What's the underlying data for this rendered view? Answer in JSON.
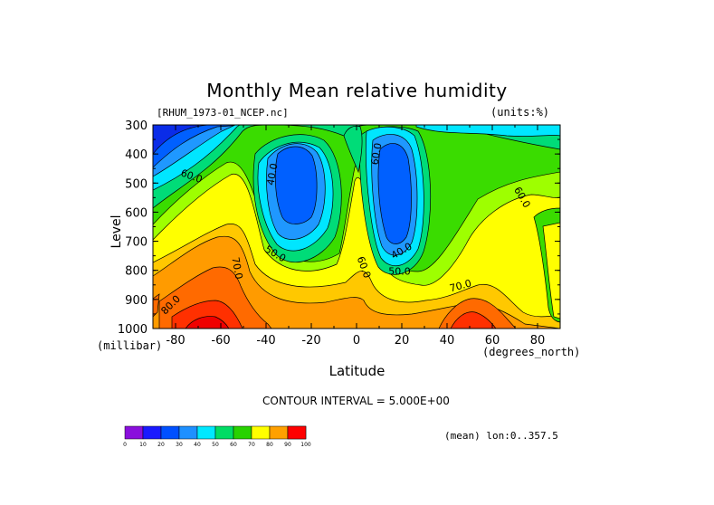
{
  "chart_data": {
    "type": "contour",
    "title": "Monthly Mean relative humidity",
    "dataset_label": "[RHUM_1973-01_NCEP.nc]",
    "units_label": "(units:%)",
    "xlabel": "Latitude",
    "x_unit": "(degrees_north)",
    "ylabel": "Level",
    "y_unit": "(millibar)",
    "xlim": [
      -90,
      90
    ],
    "ylim": [
      1000,
      300
    ],
    "x_ticks": [
      -80,
      -60,
      -40,
      -20,
      0,
      20,
      40,
      60,
      80
    ],
    "x_tick_labels": [
      "-80",
      "-60",
      "-40",
      "-20",
      "0",
      "20",
      "40",
      "60",
      "80"
    ],
    "y_ticks": [
      300,
      400,
      500,
      600,
      700,
      800,
      900,
      1000
    ],
    "y_tick_labels": [
      "300",
      "400",
      "500",
      "600",
      "700",
      "800",
      "900",
      "1000"
    ],
    "contour_interval_text": "CONTOUR INTERVAL = 5.000E+00",
    "footer_text": "(mean) lon:0..357.5",
    "colorbar": {
      "levels": [
        0,
        10,
        20,
        30,
        40,
        50,
        60,
        70,
        80,
        90,
        100
      ],
      "labels": [
        "0",
        "10",
        "20",
        "30",
        "40",
        "50",
        "60",
        "70",
        "80",
        "90",
        "100"
      ],
      "colors": [
        "#8a0fdc",
        "#1a1aff",
        "#0050ff",
        "#1e90ff",
        "#00e8ff",
        "#00dc64",
        "#28d200",
        "#ffff00",
        "#ffa000",
        "#ff5000",
        "#ff0000"
      ]
    },
    "contour_labels": [
      {
        "text": "60.0",
        "lat": -73,
        "lev": 478,
        "rot": 20
      },
      {
        "text": "40.0",
        "lat": -37,
        "lev": 470,
        "rot": -80
      },
      {
        "text": "50.0",
        "lat": -36,
        "lev": 745,
        "rot": 30
      },
      {
        "text": "70.0",
        "lat": -53,
        "lev": 793,
        "rot": 80
      },
      {
        "text": "80.0",
        "lat": -82,
        "lev": 920,
        "rot": -45
      },
      {
        "text": "60.0",
        "lat": 3,
        "lev": 790,
        "rot": 70
      },
      {
        "text": "50.0",
        "lat": 19,
        "lev": 805,
        "rot": 0
      },
      {
        "text": "40.0",
        "lat": 20,
        "lev": 735,
        "rot": -30
      },
      {
        "text": "60.0",
        "lat": 9,
        "lev": 400,
        "rot": -80
      },
      {
        "text": "70.0",
        "lat": 46,
        "lev": 855,
        "rot": -15
      },
      {
        "text": "60.0",
        "lat": 73,
        "lev": 550,
        "rot": 60
      }
    ],
    "band_colors": {
      "b20": "#0a2ce8",
      "b30": "#0060ff",
      "b35": "#1f98ff",
      "b40": "#00e6ff",
      "b50": "#00dc78",
      "b60": "#3adc00",
      "b65": "#9eff00",
      "b70": "#ffff00",
      "b75": "#ffc800",
      "b80": "#ff9b00",
      "b85": "#ff6a00",
      "b90": "#ff3000",
      "b95": "#f00000"
    }
  }
}
